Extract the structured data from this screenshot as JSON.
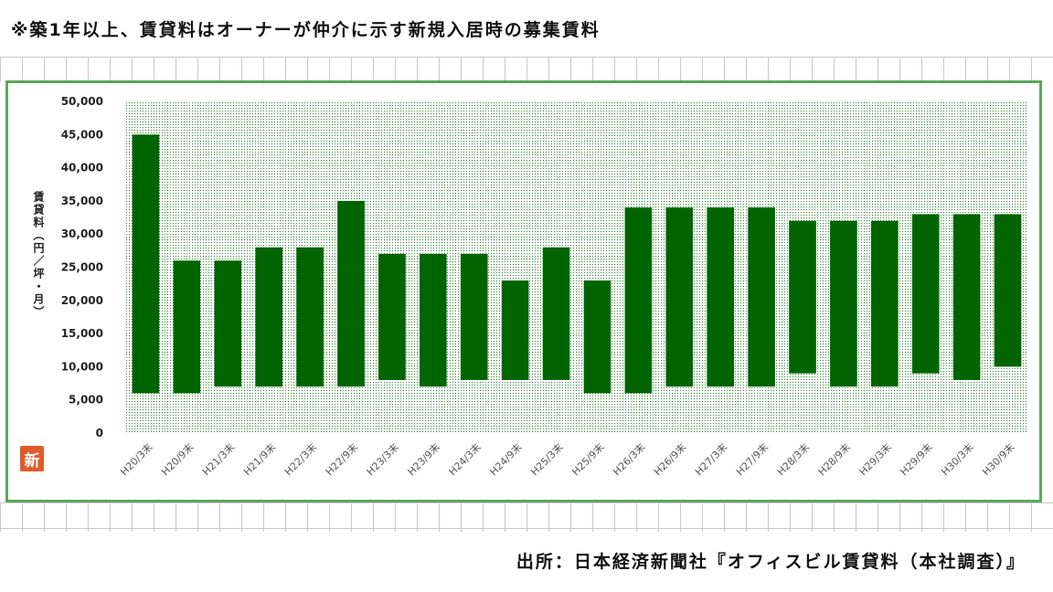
{
  "note": "※築1年以上、賃貸料はオーナーが仲介に示す新規入居時の募集賃料",
  "source": "出所：日本経済新聞社『オフィスビル賃貸料（本社調査）』",
  "logo_text": "新",
  "colors": {
    "bar": "#006400",
    "frame": "#5aa85a",
    "plot_bg": "#c6e3c6"
  },
  "chart_data": {
    "type": "bar",
    "subtype": "floating-range",
    "title": "",
    "xlabel": "",
    "ylabel": "賃貸料（円／坪・月）",
    "ylim": [
      0,
      50000
    ],
    "yticks": [
      "0",
      "5,000",
      "10,000",
      "15,000",
      "20,000",
      "25,000",
      "30,000",
      "35,000",
      "40,000",
      "45,000",
      "50,000"
    ],
    "categories": [
      "H20/3末",
      "H20/9末",
      "H21/3末",
      "H21/9末",
      "H22/3末",
      "H22/9末",
      "H23/3末",
      "H23/9末",
      "H24/3末",
      "H24/9末",
      "H25/3末",
      "H25/9末",
      "H26/3末",
      "H26/9末",
      "H27/3末",
      "H27/9末",
      "H28/3末",
      "H28/9末",
      "H29/3末",
      "H29/9末",
      "H30/3末",
      "H30/9末"
    ],
    "series": [
      {
        "low": [
          6000,
          6000,
          7000,
          7000,
          7000,
          7000,
          8000,
          7000,
          8000,
          8000,
          8000,
          6000,
          6000,
          7000,
          7000,
          7000,
          9000,
          7000,
          7000,
          9000,
          8000,
          10000
        ],
        "high": [
          45000,
          26000,
          26000,
          28000,
          28000,
          35000,
          27000,
          27000,
          27000,
          23000,
          28000,
          23000,
          34000,
          34000,
          34000,
          34000,
          32000,
          32000,
          32000,
          33000,
          33000,
          33000
        ]
      }
    ],
    "grid": false,
    "legend": "none"
  }
}
